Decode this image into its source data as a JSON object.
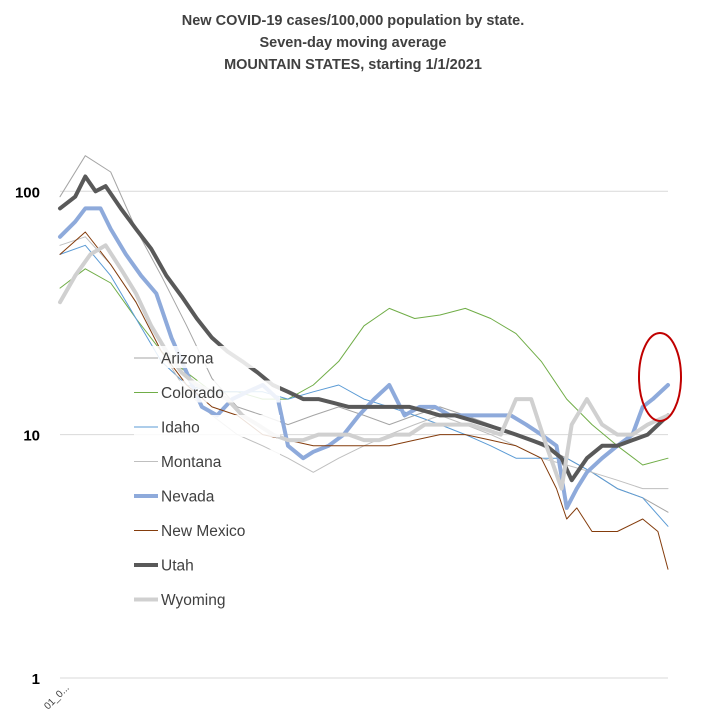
{
  "chart_data": {
    "type": "line",
    "title": [
      "New COVID-19 cases/100,000 population by state.",
      "Seven-day moving average",
      "MOUNTAIN STATES, starting 1/1/2021"
    ],
    "xlabel": "",
    "ylabel": "",
    "y_scale": "log",
    "ylim": [
      1,
      200
    ],
    "y_ticks": [
      1,
      10,
      100
    ],
    "y_tick_labels": [
      "1",
      "10",
      "100"
    ],
    "x_tick_label": "01_0...",
    "x_index_range": [
      0,
      120
    ],
    "grid": "horizontal",
    "legend_position": "left-center",
    "annotation": "red-ellipse-around-latest-values",
    "series": [
      {
        "name": "Arizona",
        "color": "#a5a5a5",
        "stroke_width": 1,
        "x": [
          0,
          5,
          10,
          15,
          20,
          25,
          30,
          35,
          40,
          45,
          50,
          55,
          60,
          65,
          70,
          75,
          80,
          85,
          90,
          95,
          100,
          105,
          110,
          115,
          120
        ],
        "values": [
          95,
          140,
          120,
          70,
          45,
          28,
          17,
          13,
          12,
          11,
          12,
          13,
          12,
          11,
          12,
          13,
          12,
          11,
          10,
          9,
          8,
          7,
          6,
          5.5,
          4.8
        ]
      },
      {
        "name": "Colorado",
        "color": "#70ad47",
        "stroke_width": 1,
        "x": [
          0,
          5,
          10,
          15,
          20,
          25,
          30,
          35,
          40,
          45,
          50,
          55,
          60,
          65,
          70,
          75,
          80,
          85,
          90,
          95,
          100,
          105,
          110,
          115,
          120
        ],
        "values": [
          40,
          48,
          42,
          30,
          22,
          18,
          15,
          15,
          14,
          14,
          16,
          20,
          28,
          33,
          30,
          31,
          33,
          30,
          26,
          20,
          14,
          11,
          9,
          7.5,
          8
        ]
      },
      {
        "name": "Idaho",
        "color": "#5b9bd5",
        "stroke_width": 1,
        "x": [
          0,
          5,
          10,
          15,
          20,
          25,
          30,
          35,
          40,
          45,
          50,
          55,
          60,
          65,
          70,
          75,
          80,
          85,
          90,
          95,
          100,
          105,
          110,
          115,
          120
        ],
        "values": [
          55,
          60,
          45,
          30,
          20,
          16,
          15,
          15,
          15,
          14,
          15,
          16,
          14,
          13,
          12,
          11,
          10,
          9,
          8,
          8,
          8,
          7,
          6,
          5.5,
          4.2
        ]
      },
      {
        "name": "Montana",
        "color": "#bfbfbf",
        "stroke_width": 1,
        "x": [
          0,
          5,
          10,
          15,
          20,
          25,
          30,
          35,
          40,
          45,
          50,
          55,
          60,
          65,
          70,
          75,
          80,
          85,
          90,
          95,
          100,
          105,
          110,
          115,
          120
        ],
        "values": [
          60,
          65,
          50,
          35,
          22,
          15,
          12,
          10,
          9,
          8,
          7,
          8,
          9,
          10,
          11,
          12,
          11,
          10,
          9,
          8,
          7.5,
          7,
          6.5,
          6,
          6
        ]
      },
      {
        "name": "Nevada",
        "color": "#8eaadb",
        "stroke_width": 4,
        "x": [
          0,
          3,
          5,
          8,
          10,
          13,
          16,
          19,
          22,
          25,
          28,
          31,
          34,
          37,
          40,
          43,
          45,
          48,
          50,
          53,
          56,
          59,
          62,
          65,
          68,
          71,
          74,
          77,
          80,
          83,
          86,
          89,
          92,
          95,
          98,
          100,
          102,
          104,
          107,
          110,
          113,
          115,
          117,
          120
        ],
        "values": [
          65,
          75,
          85,
          85,
          70,
          55,
          45,
          38,
          25,
          18,
          13,
          12,
          14,
          15,
          16,
          14,
          9,
          8,
          8.5,
          9,
          10,
          12,
          14,
          16,
          12,
          13,
          13,
          12,
          12,
          12,
          12,
          12,
          11,
          10,
          9,
          5,
          6,
          7,
          8,
          9,
          10,
          13,
          14,
          16
        ]
      },
      {
        "name": "New Mexico",
        "color": "#843c0c",
        "stroke_width": 1,
        "x": [
          0,
          5,
          10,
          15,
          20,
          25,
          30,
          35,
          40,
          45,
          50,
          55,
          60,
          65,
          70,
          75,
          80,
          85,
          90,
          95,
          98,
          100,
          102,
          105,
          110,
          115,
          118,
          120
        ],
        "values": [
          55,
          68,
          50,
          35,
          22,
          16,
          13,
          12,
          10,
          9.5,
          9,
          9,
          9,
          9,
          9.5,
          10,
          10,
          9.5,
          9,
          8,
          6,
          4.5,
          5,
          4,
          4,
          4.5,
          4,
          2.8
        ]
      },
      {
        "name": "Utah",
        "color": "#595959",
        "stroke_width": 4,
        "x": [
          0,
          3,
          5,
          7,
          9,
          12,
          15,
          18,
          21,
          24,
          27,
          30,
          33,
          36,
          39,
          42,
          45,
          48,
          51,
          54,
          57,
          60,
          63,
          66,
          69,
          72,
          75,
          78,
          81,
          84,
          87,
          90,
          93,
          96,
          99,
          101,
          104,
          107,
          110,
          113,
          116,
          120
        ],
        "values": [
          85,
          95,
          115,
          100,
          105,
          85,
          70,
          58,
          45,
          37,
          30,
          25,
          22,
          20,
          18,
          16,
          15,
          14,
          14,
          13.5,
          13,
          13,
          13,
          13,
          13,
          12.5,
          12,
          12,
          11.5,
          11,
          10.5,
          10,
          9.5,
          9,
          8,
          6.5,
          8,
          9,
          9,
          9.5,
          10,
          12
        ]
      },
      {
        "name": "Wyoming",
        "color": "#d0d0d0",
        "stroke_width": 4,
        "x": [
          0,
          3,
          6,
          9,
          12,
          15,
          18,
          21,
          24,
          27,
          30,
          33,
          36,
          39,
          42,
          45,
          48,
          51,
          54,
          57,
          60,
          63,
          66,
          69,
          72,
          75,
          78,
          81,
          84,
          87,
          90,
          93,
          96,
          99,
          101,
          104,
          107,
          110,
          113,
          116,
          120
        ],
        "values": [
          35,
          45,
          55,
          60,
          48,
          38,
          28,
          22,
          18,
          16,
          15,
          14,
          12,
          11,
          10,
          9.5,
          9.5,
          10,
          10,
          10,
          9.5,
          9.5,
          10,
          10,
          11,
          11,
          11,
          11,
          10.5,
          10,
          14,
          14,
          9,
          6,
          11,
          14,
          11,
          10,
          10,
          11,
          12
        ]
      }
    ]
  }
}
